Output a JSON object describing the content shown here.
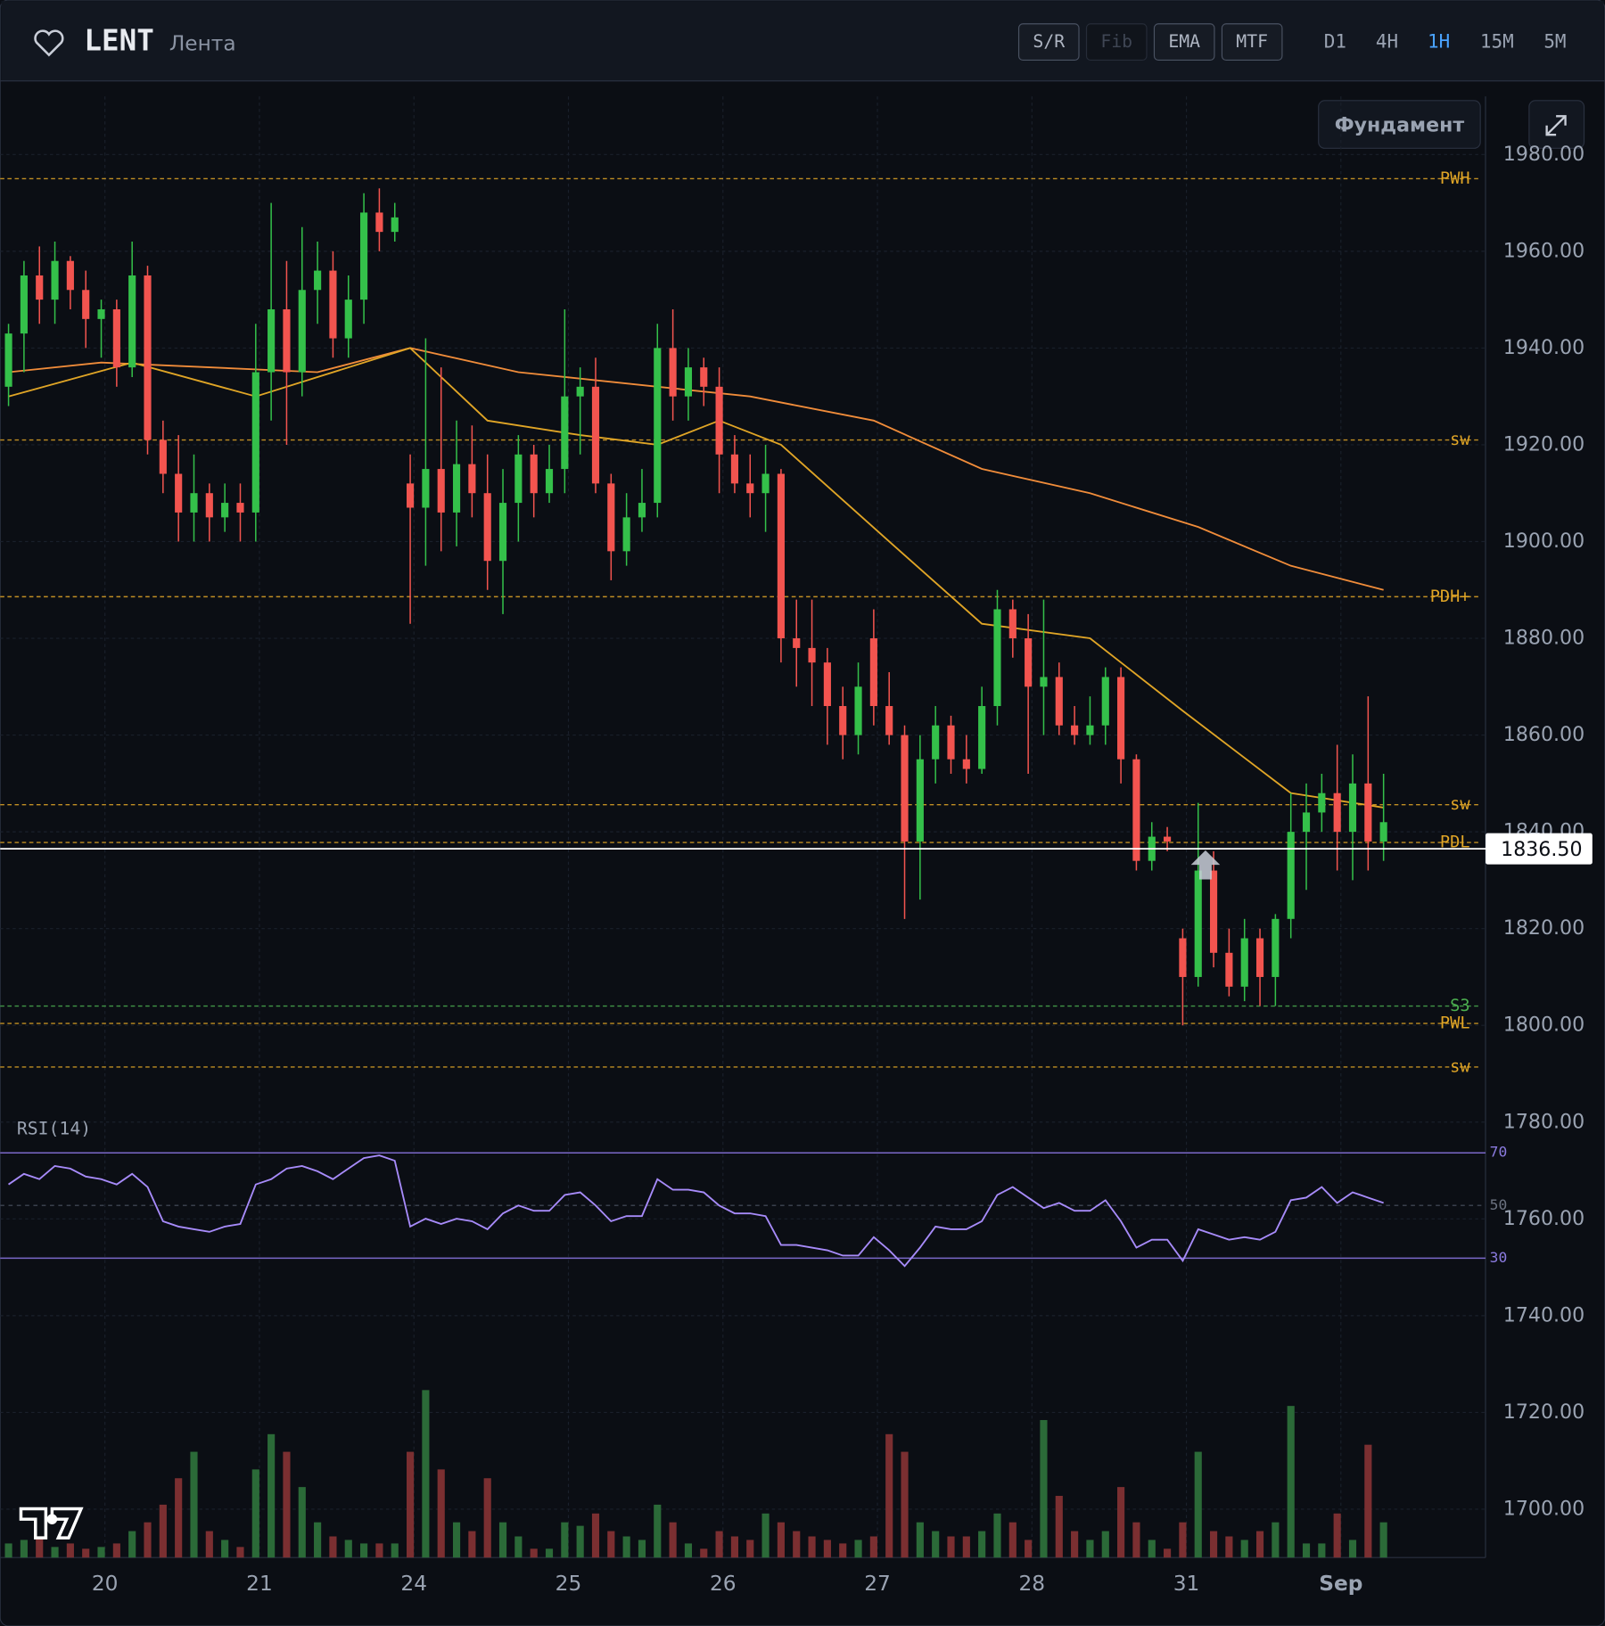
{
  "header": {
    "symbol": "LENT",
    "name": "Лента",
    "tools": [
      "S/R",
      "Fib",
      "EMA",
      "MTF"
    ],
    "timeframes": [
      "D1",
      "4H",
      "1H",
      "15M",
      "5M"
    ],
    "active_timeframe": "1H",
    "button": "Фундамент"
  },
  "chart_data": {
    "type": "candlestick",
    "xlim": [
      -0.54,
      95.6
    ],
    "xticks": [
      {
        "value": 6.24,
        "label": "20"
      },
      {
        "value": 16.24,
        "label": "21"
      },
      {
        "value": 26.24,
        "label": "24"
      },
      {
        "value": 36.24,
        "label": "25"
      },
      {
        "value": 46.24,
        "label": "26"
      },
      {
        "value": 56.24,
        "label": "27"
      },
      {
        "value": 66.24,
        "label": "28"
      },
      {
        "value": 76.24,
        "label": "31"
      },
      {
        "value": 86.24,
        "label": "Sep"
      }
    ],
    "ylim": [
      1690,
      1992
    ],
    "yticks": [
      {
        "value": 1980,
        "label": "1980.00"
      },
      {
        "value": 1960,
        "label": "1960.00"
      },
      {
        "value": 1940,
        "label": "1940.00"
      },
      {
        "value": 1920,
        "label": "1920.00"
      },
      {
        "value": 1900,
        "label": "1900.00"
      },
      {
        "value": 1880,
        "label": "1880.00"
      },
      {
        "value": 1860,
        "label": "1860.00"
      },
      {
        "value": 1840,
        "label": "1840.00"
      },
      {
        "value": 1820,
        "label": "1820.00"
      },
      {
        "value": 1800,
        "label": "1800.00"
      },
      {
        "value": 1780,
        "label": "1780.00"
      },
      {
        "value": 1760,
        "label": "1760.00"
      },
      {
        "value": 1740,
        "label": "1740.00"
      },
      {
        "value": 1720,
        "label": "1720.00"
      },
      {
        "value": 1700,
        "label": "1700.00"
      }
    ],
    "grid": true,
    "up_color": "#34c04a",
    "down_color": "#f2544f",
    "up_volume_color": "#2b6a38",
    "down_volume_color": "#7b2f31",
    "open": [
      1932,
      1943,
      1955,
      1950,
      1958,
      1952,
      1946,
      1948,
      1936,
      1955,
      1921,
      1914,
      1906,
      1910,
      1905,
      1908,
      1906,
      1935,
      1948,
      1935,
      1952,
      1956,
      1942,
      1950,
      1968,
      1964,
      1912,
      1907,
      1915,
      1906,
      1916,
      1910,
      1896,
      1908,
      1918,
      1910,
      1915,
      1930,
      1932,
      1912,
      1898,
      1905,
      1908,
      1940,
      1930,
      1936,
      1932,
      1918,
      1912,
      1910,
      1914,
      1880,
      1878,
      1875,
      1866,
      1860,
      1880,
      1866,
      1860,
      1838,
      1855,
      1862,
      1855,
      1853,
      1866,
      1886,
      1880,
      1870,
      1872,
      1862,
      1860,
      1862,
      1872,
      1855,
      1834,
      1839,
      1818,
      1810,
      1832,
      1815,
      1808,
      1818,
      1810,
      1822,
      1840,
      1844,
      1848,
      1840,
      1850,
      1838
    ],
    "high": [
      1945,
      1958,
      1961,
      1962,
      1959,
      1956,
      1950,
      1950,
      1962,
      1957,
      1925,
      1922,
      1918,
      1912,
      1912,
      1912,
      1945,
      1970,
      1958,
      1965,
      1962,
      1960,
      1955,
      1972,
      1973,
      1970,
      1918,
      1942,
      1936,
      1925,
      1924,
      1918,
      1915,
      1922,
      1920,
      1920,
      1948,
      1936,
      1938,
      1914,
      1910,
      1915,
      1945,
      1948,
      1940,
      1938,
      1936,
      1922,
      1918,
      1920,
      1915,
      1888,
      1888,
      1878,
      1870,
      1875,
      1886,
      1873,
      1862,
      1860,
      1866,
      1864,
      1860,
      1870,
      1890,
      1888,
      1885,
      1888,
      1875,
      1866,
      1868,
      1874,
      1874,
      1856,
      1842,
      1841,
      1820,
      1846,
      1836,
      1820,
      1822,
      1820,
      1823,
      1848,
      1850,
      1852,
      1858,
      1856,
      1868,
      1852
    ],
    "low": [
      1928,
      1935,
      1945,
      1945,
      1948,
      1940,
      1938,
      1932,
      1934,
      1918,
      1910,
      1900,
      1900,
      1900,
      1902,
      1900,
      1900,
      1925,
      1920,
      1930,
      1945,
      1938,
      1938,
      1945,
      1960,
      1962,
      1883,
      1895,
      1898,
      1899,
      1905,
      1890,
      1885,
      1900,
      1905,
      1908,
      1910,
      1918,
      1910,
      1892,
      1895,
      1902,
      1905,
      1925,
      1925,
      1928,
      1910,
      1910,
      1905,
      1902,
      1875,
      1870,
      1866,
      1858,
      1855,
      1856,
      1862,
      1858,
      1822,
      1826,
      1850,
      1852,
      1850,
      1852,
      1862,
      1876,
      1852,
      1860,
      1860,
      1858,
      1858,
      1858,
      1850,
      1832,
      1832,
      1836,
      1800,
      1808,
      1812,
      1806,
      1805,
      1804,
      1804,
      1818,
      1828,
      1840,
      1832,
      1830,
      1832,
      1834
    ],
    "close": [
      1943,
      1955,
      1950,
      1958,
      1952,
      1946,
      1948,
      1936,
      1955,
      1921,
      1914,
      1906,
      1910,
      1905,
      1908,
      1906,
      1935,
      1948,
      1935,
      1952,
      1956,
      1942,
      1950,
      1968,
      1964,
      1967,
      1907,
      1915,
      1906,
      1916,
      1910,
      1896,
      1908,
      1918,
      1910,
      1915,
      1930,
      1932,
      1912,
      1898,
      1905,
      1908,
      1940,
      1930,
      1936,
      1932,
      1918,
      1912,
      1910,
      1914,
      1880,
      1878,
      1875,
      1866,
      1860,
      1870,
      1866,
      1860,
      1838,
      1855,
      1862,
      1855,
      1853,
      1866,
      1886,
      1880,
      1870,
      1872,
      1862,
      1860,
      1862,
      1872,
      1855,
      1834,
      1839,
      1838,
      1810,
      1832,
      1815,
      1808,
      1818,
      1810,
      1822,
      1840,
      1844,
      1848,
      1840,
      1850,
      1838,
      1842
    ],
    "ema_fast": {
      "color": "#e0a526",
      "x": [
        0,
        8,
        16,
        26,
        31,
        37,
        42,
        46,
        50,
        57,
        63,
        70,
        76,
        83,
        89
      ],
      "values": [
        1930,
        1937,
        1930,
        1940,
        1925,
        1922,
        1920,
        1925,
        1920,
        1900,
        1883,
        1880,
        1865,
        1848,
        1845
      ]
    },
    "ema_slow": {
      "color": "#f08c3a",
      "x": [
        0,
        6,
        20,
        26,
        33,
        42,
        48,
        56,
        63,
        70,
        77,
        83,
        89
      ],
      "values": [
        1935,
        1937,
        1935,
        1940,
        1935,
        1932,
        1930,
        1925,
        1915,
        1910,
        1903,
        1895,
        1890
      ]
    },
    "levels": [
      {
        "label": "PWH",
        "value": 1975,
        "color": "#e0a526"
      },
      {
        "label": "sw",
        "value": 1921,
        "color": "#e0a526"
      },
      {
        "label": "PDH+",
        "value": 1888.6,
        "color": "#e0a526"
      },
      {
        "label": "sw",
        "value": 1845.6,
        "color": "#e0a526"
      },
      {
        "label": "PDL",
        "value": 1837.8,
        "color": "#e0a526"
      },
      {
        "label": "S3",
        "value": 1804,
        "color": "#4caf50"
      },
      {
        "label": "PWL",
        "value": 1800.4,
        "color": "#e0a526"
      },
      {
        "label": "sw",
        "value": 1791.4,
        "color": "#e0a526"
      }
    ],
    "current_price": {
      "value": 1836.5,
      "label": "1836.50"
    },
    "rsi": {
      "label": "RSI(14)",
      "color": "#a78bfa",
      "ylim": [
        25,
        75
      ],
      "yticks": [
        70,
        50,
        30
      ],
      "values": [
        58,
        62,
        60,
        65,
        64,
        61,
        60,
        58,
        62,
        57,
        44,
        42,
        41,
        40,
        42,
        43,
        58,
        60,
        64,
        65,
        63,
        60,
        64,
        68,
        69,
        67,
        42,
        45,
        43,
        45,
        44,
        41,
        47,
        50,
        48,
        48,
        54,
        55,
        50,
        44,
        46,
        46,
        60,
        56,
        56,
        55,
        50,
        47,
        47,
        46,
        35,
        35,
        34,
        33,
        31,
        31,
        38,
        33,
        27,
        34,
        42,
        41,
        41,
        44,
        54,
        57,
        53,
        49,
        51,
        48,
        48,
        52,
        44,
        34,
        37,
        37,
        29,
        41,
        39,
        37,
        38,
        37,
        40,
        52,
        53,
        57,
        51,
        55,
        53,
        51
      ]
    },
    "volume": {
      "ylim": [
        0,
        100
      ],
      "values": [
        8,
        10,
        12,
        6,
        8,
        5,
        6,
        8,
        15,
        20,
        30,
        45,
        60,
        15,
        10,
        6,
        50,
        70,
        60,
        40,
        20,
        12,
        10,
        8,
        8,
        8,
        60,
        95,
        50,
        20,
        15,
        45,
        20,
        12,
        5,
        5,
        20,
        18,
        25,
        15,
        12,
        10,
        30,
        20,
        8,
        5,
        15,
        12,
        10,
        25,
        20,
        15,
        12,
        10,
        8,
        10,
        12,
        70,
        60,
        20,
        15,
        12,
        12,
        15,
        25,
        20,
        10,
        78,
        35,
        15,
        10,
        15,
        40,
        20,
        10,
        5,
        20,
        60,
        15,
        12,
        10,
        15,
        20,
        86,
        8,
        8,
        25,
        10,
        64,
        20
      ]
    }
  }
}
